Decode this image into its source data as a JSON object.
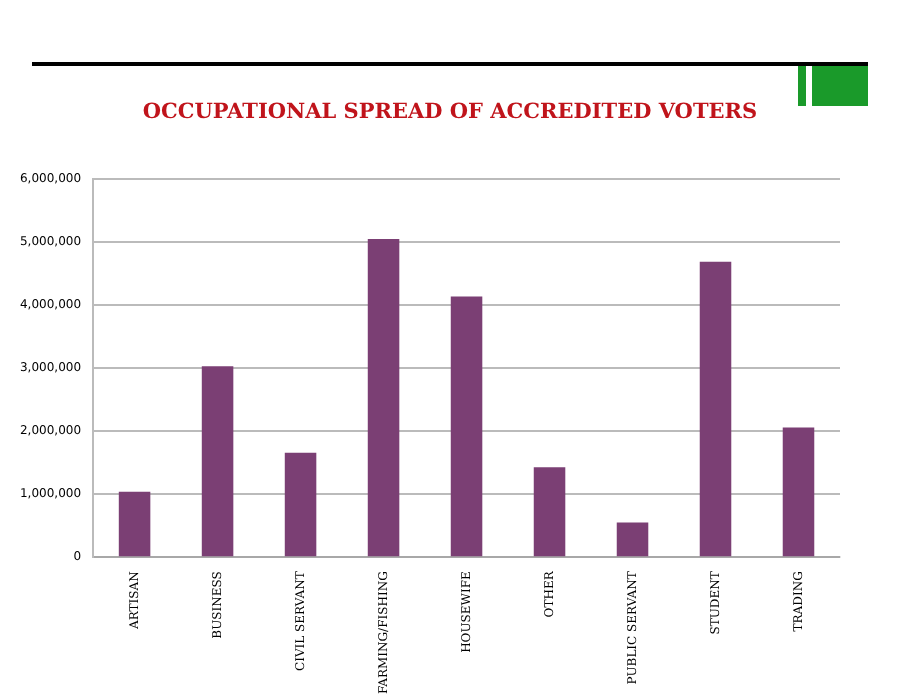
{
  "chart_data": {
    "type": "bar",
    "title": "OCCUPATIONAL SPREAD OF ACCREDITED VOTERS",
    "categories": [
      "ARTISAN",
      "BUSINESS",
      "CIVIL SERVANT",
      "FARMING/FISHING",
      "HOUSEWIFE",
      "OTHER",
      "PUBLIC SERVANT",
      "STUDENT",
      "TRADING"
    ],
    "values": [
      1040000,
      3030000,
      1660000,
      5050000,
      4140000,
      1430000,
      550000,
      4690000,
      2060000
    ],
    "color": "#7b3f74",
    "ylim": [
      0,
      6000000
    ],
    "yticks": [
      0,
      {
        "value": 1000000,
        "label": "1,000,000"
      },
      {
        "value": 2000000,
        "label": "2,000,000"
      },
      {
        "value": 3000000,
        "label": "3,000,000"
      },
      {
        "value": 4000000,
        "label": "4,000,000"
      },
      {
        "value": 5000000,
        "label": "5,000,000"
      },
      {
        "value": 6000000,
        "label": "6,000,000"
      }
    ],
    "grid": "y",
    "legend": false
  }
}
